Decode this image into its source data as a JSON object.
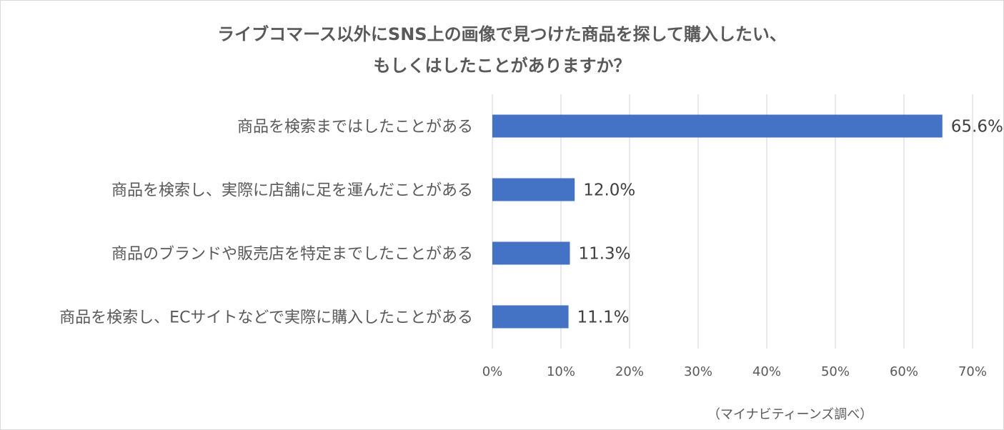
{
  "chart_data": {
    "type": "bar",
    "orientation": "horizontal",
    "title_lines": [
      "ライブコマース以外にSNS上の画像で見つけた商品を探して購入したい、",
      "もしくはしたことがありますか？"
    ],
    "categories": [
      "商品を検索まではしたことがある",
      "商品を検索し、実際に店舗に足を運んだことがある",
      "商品のブランドや販売店を特定までしたことがある",
      "商品を検索し、ECサイトなどで実際に購入したことがある"
    ],
    "values": [
      65.6,
      12.0,
      11.3,
      11.1
    ],
    "value_labels": [
      "65.6%",
      "12.0%",
      "11.3%",
      "11.1%"
    ],
    "xlim": [
      0,
      70
    ],
    "x_ticks": [
      0,
      10,
      20,
      30,
      40,
      50,
      60,
      70
    ],
    "x_tick_labels": [
      "0%",
      "10%",
      "20%",
      "30%",
      "40%",
      "50%",
      "60%",
      "70%"
    ],
    "bar_color": "#4472c4",
    "grid": true,
    "legend": "none"
  },
  "source": "（マイナビティーンズ調べ）"
}
